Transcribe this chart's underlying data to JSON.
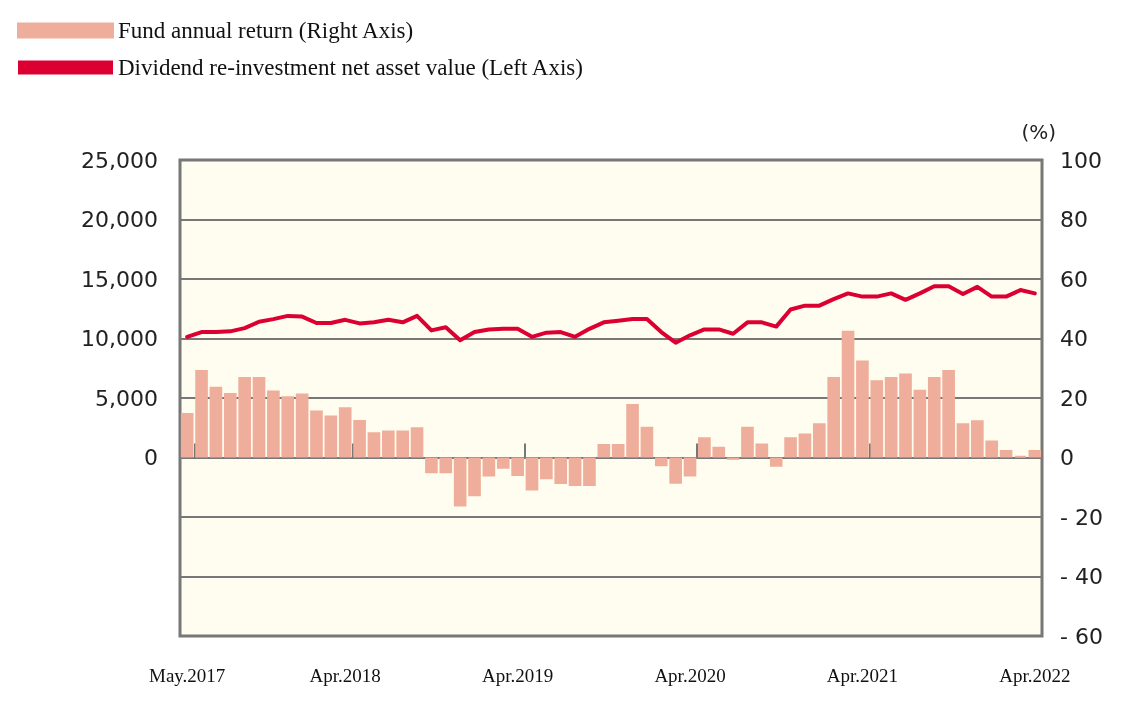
{
  "chart_data": {
    "type": "bar",
    "categories": [
      "May.2017",
      null,
      null,
      null,
      null,
      null,
      null,
      null,
      null,
      null,
      null,
      "Apr.2018",
      null,
      null,
      null,
      null,
      null,
      null,
      null,
      null,
      null,
      null,
      null,
      "Apr.2019",
      null,
      null,
      null,
      null,
      null,
      null,
      null,
      null,
      null,
      null,
      null,
      "Apr.2020",
      null,
      null,
      null,
      null,
      null,
      null,
      null,
      null,
      null,
      null,
      null,
      "Apr.2021",
      null,
      null,
      null,
      null,
      null,
      null,
      null,
      null,
      null,
      null,
      null,
      "Apr.2022"
    ],
    "series": [
      {
        "name": "Fund annual return (Right Axis)",
        "axis": "y2",
        "color": "#efae9b",
        "values": [
          15.0,
          29.4,
          23.8,
          21.7,
          27.1,
          27.1,
          22.5,
          20.6,
          21.5,
          15.8,
          14.1,
          16.9,
          12.6,
          8.5,
          9.1,
          9.1,
          10.2,
          -5.3,
          -5.3,
          -16.5,
          -13.0,
          -6.4,
          -3.8,
          -6.2,
          -11.1,
          -7.3,
          -8.9,
          -9.6,
          -9.6,
          4.5,
          4.5,
          18.0,
          10.3,
          -2.9,
          -8.8,
          -6.4,
          6.8,
          3.6,
          -0.8,
          10.3,
          4.7,
          -3.1,
          6.8,
          8.1,
          11.5,
          27.1,
          42.6,
          32.6,
          26.0,
          27.1,
          28.2,
          22.8,
          27.1,
          29.4,
          11.5,
          12.5,
          5.7,
          2.5,
          0.5,
          2.5
        ]
      },
      {
        "name": "Dividend re-investment net asset value (Left Axis)",
        "type": "line",
        "color": "#dc0032",
        "values": [
          10140,
          10540,
          10540,
          10600,
          10870,
          11410,
          11630,
          11900,
          11840,
          11300,
          11300,
          11570,
          11270,
          11360,
          11570,
          11360,
          11900,
          10680,
          10950,
          9860,
          10540,
          10760,
          10810,
          10810,
          10140,
          10490,
          10540,
          10140,
          10810,
          11360,
          11490,
          11630,
          11630,
          10540,
          9650,
          10270,
          10760,
          10760,
          10400,
          11360,
          11360,
          11000,
          12440,
          12760,
          12760,
          13310,
          13790,
          13520,
          13520,
          13790,
          13250,
          13790,
          14390,
          14390,
          13740,
          14340,
          13520,
          13520,
          14070,
          13790
        ]
      }
    ],
    "ylim": [
      -15000,
      25000
    ],
    "yticks": [
      {
        "value": 0,
        "label": "0"
      },
      {
        "value": 5000,
        "label": "5,000"
      },
      {
        "value": 10000,
        "label": "10,000"
      },
      {
        "value": 15000,
        "label": "15,000"
      },
      {
        "value": 20000,
        "label": "20,000"
      },
      {
        "value": 25000,
        "label": "25,000"
      }
    ],
    "y2lim": [
      -60,
      100
    ],
    "y2ticks": [
      {
        "value": -60,
        "label": "- 60"
      },
      {
        "value": -40,
        "label": "- 40"
      },
      {
        "value": -20,
        "label": "- 20"
      },
      0,
      20,
      40,
      60,
      80,
      100
    ],
    "y2label": "(%)",
    "grid": "y",
    "legend": "top left",
    "marker": "none"
  }
}
